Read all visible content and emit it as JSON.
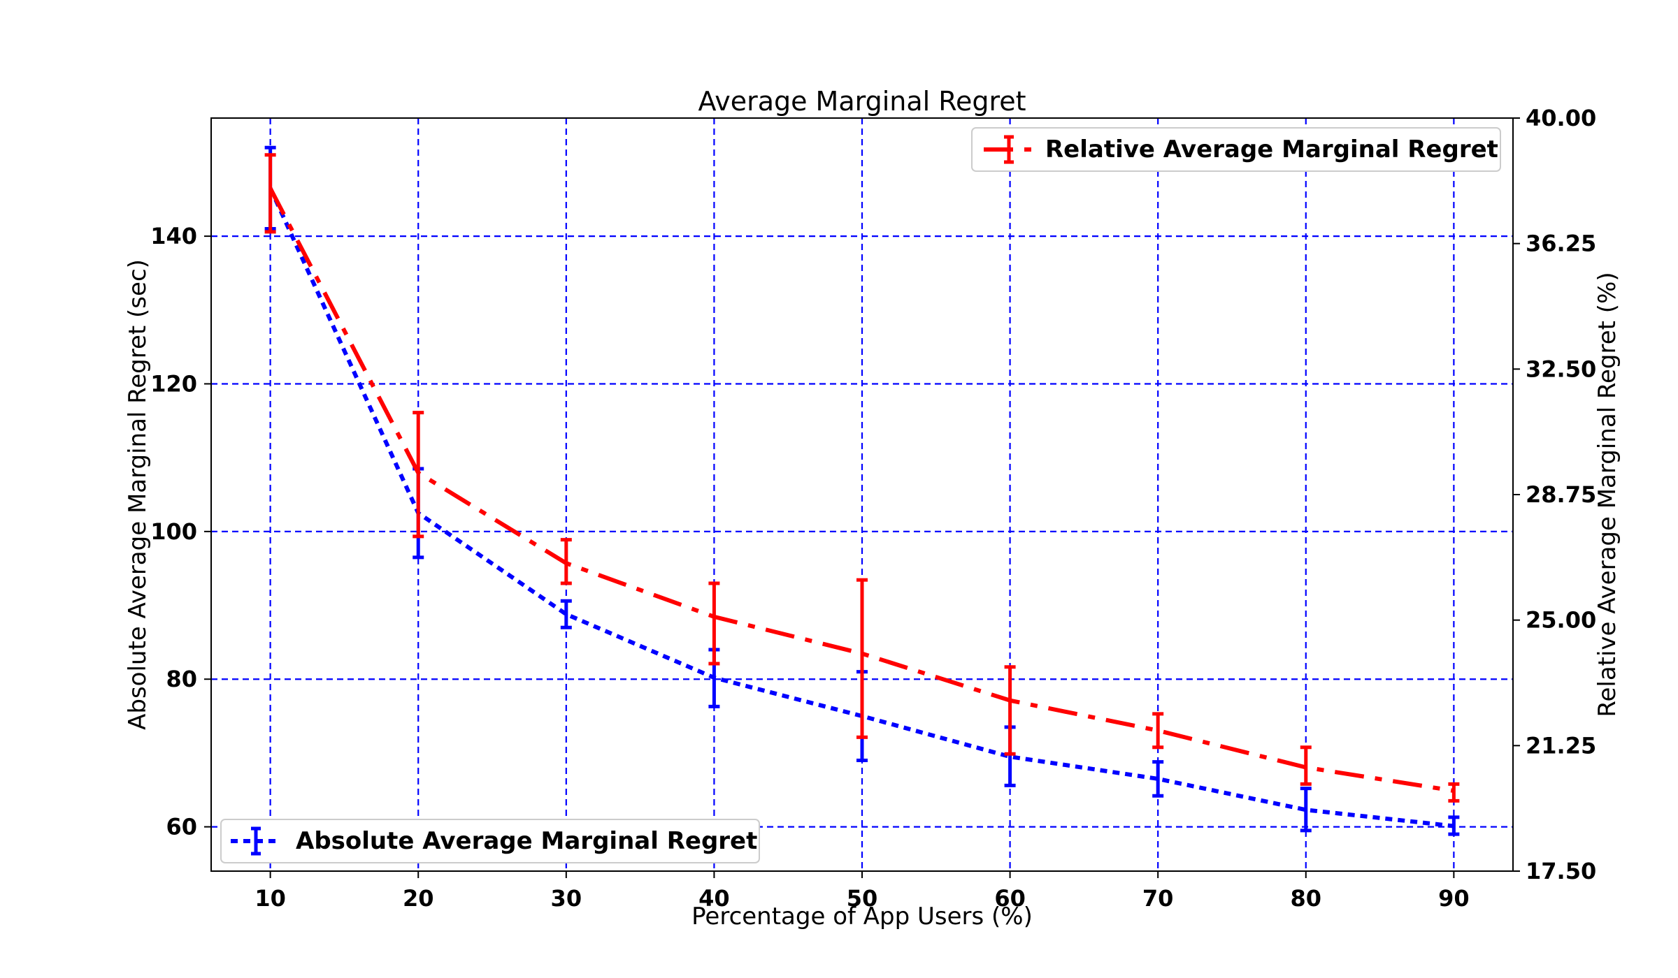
{
  "chart_data": {
    "type": "line",
    "title": "Average Marginal Regret",
    "xlabel": "Percentage of App Users (%)",
    "ylabel_left": "Absolute Average Marginal Regret (sec)",
    "ylabel_right": "Relative Average Marginal Regret (%)",
    "x": [
      10,
      20,
      30,
      40,
      50,
      60,
      70,
      80,
      90
    ],
    "x_ticks": [
      "10",
      "20",
      "30",
      "40",
      "50",
      "60",
      "70",
      "80",
      "90"
    ],
    "xlim": [
      6,
      94
    ],
    "ylim_left": [
      54,
      156
    ],
    "ylim_right": [
      17.5,
      40.0
    ],
    "y_ticks_left": [
      "60",
      "80",
      "100",
      "120",
      "140"
    ],
    "y_ticks_right": [
      "17.50",
      "21.25",
      "25.00",
      "28.75",
      "32.50",
      "36.25",
      "40.00"
    ],
    "grid": true,
    "series": [
      {
        "name": "Absolute Average Marginal Regret",
        "axis": "left",
        "color": "#0000ff",
        "style": "dotted",
        "values": [
          146.5,
          102.5,
          88.8,
          80.2,
          75.0,
          69.5,
          66.5,
          62.3,
          60.1
        ],
        "err_low": [
          141.0,
          96.5,
          87.0,
          76.3,
          69.0,
          65.6,
          64.2,
          59.5,
          59.0
        ],
        "err_high": [
          152.0,
          108.5,
          90.6,
          84.0,
          81.0,
          73.5,
          68.8,
          65.2,
          61.3
        ],
        "legend_position": "lower-left"
      },
      {
        "name": "Relative Average Marginal Regret",
        "axis": "right",
        "color": "#ff0000",
        "style": "dashdot",
        "values": [
          37.9,
          29.4,
          26.7,
          25.1,
          24.0,
          22.6,
          21.7,
          20.6,
          19.9
        ],
        "err_low": [
          36.6,
          27.5,
          26.1,
          23.7,
          21.5,
          21.0,
          21.2,
          20.1,
          19.6
        ],
        "err_high": [
          38.9,
          31.2,
          27.4,
          26.1,
          26.2,
          23.6,
          22.2,
          21.2,
          20.1
        ],
        "legend_position": "upper-right"
      }
    ]
  }
}
